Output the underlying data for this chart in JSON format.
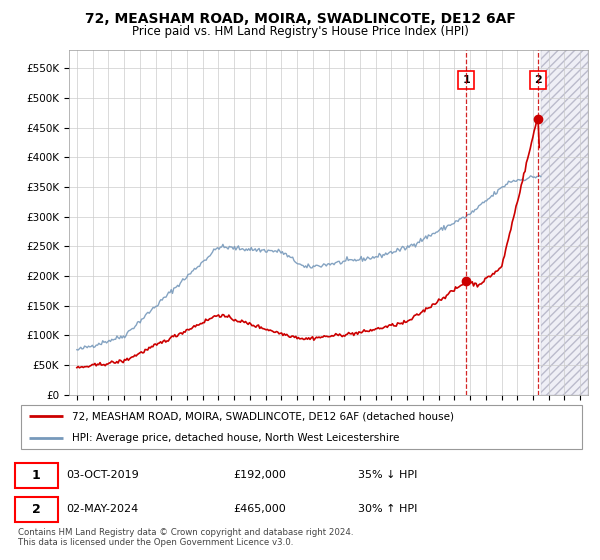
{
  "title": "72, MEASHAM ROAD, MOIRA, SWADLINCOTE, DE12 6AF",
  "subtitle": "Price paid vs. HM Land Registry's House Price Index (HPI)",
  "ylabel_ticks": [
    "£0",
    "£50K",
    "£100K",
    "£150K",
    "£200K",
    "£250K",
    "£300K",
    "£350K",
    "£400K",
    "£450K",
    "£500K",
    "£550K"
  ],
  "ytick_values": [
    0,
    50000,
    100000,
    150000,
    200000,
    250000,
    300000,
    350000,
    400000,
    450000,
    500000,
    550000
  ],
  "ylim": [
    0,
    580000
  ],
  "xlim_start": 1994.5,
  "xlim_end": 2027.5,
  "hpi_color": "#7799bb",
  "price_color": "#cc0000",
  "sale1_date": 2019.75,
  "sale1_price": 192000,
  "sale2_date": 2024.33,
  "sale2_price": 465000,
  "legend_label1": "72, MEASHAM ROAD, MOIRA, SWADLINCOTE, DE12 6AF (detached house)",
  "legend_label2": "HPI: Average price, detached house, North West Leicestershire",
  "footer": "Contains HM Land Registry data © Crown copyright and database right 2024.\nThis data is licensed under the Open Government Licence v3.0.",
  "background_color": "#ffffff",
  "grid_color": "#cccccc"
}
